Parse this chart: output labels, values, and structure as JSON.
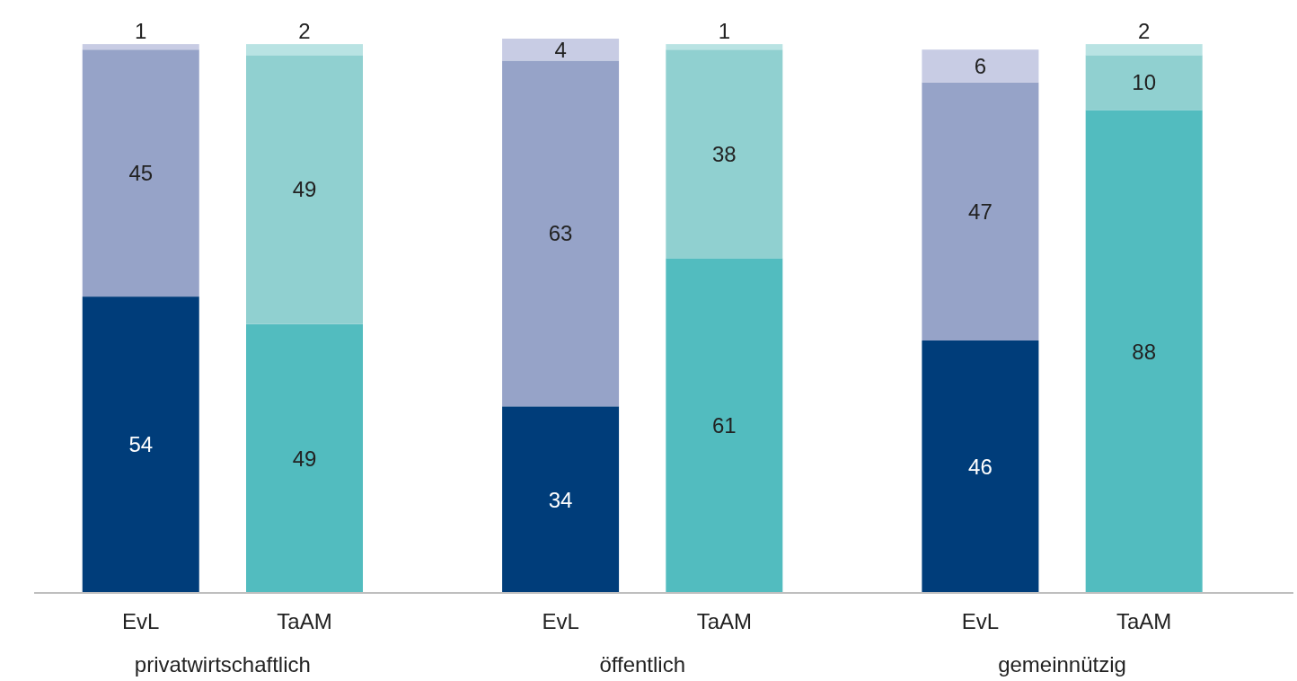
{
  "chart_data": {
    "type": "bar",
    "stacked": true,
    "data_labels": true,
    "categories": [
      "EvL",
      "TaAM",
      "EvL",
      "TaAM",
      "EvL",
      "TaAM"
    ],
    "series": [
      {
        "colors": [
          "#003d7a",
          "#52bcbf",
          "#003d7a",
          "#52bcbf",
          "#003d7a",
          "#52bcbf"
        ],
        "values": [
          54,
          49,
          34,
          61,
          46,
          88
        ]
      },
      {
        "colors": [
          "#96a3c8",
          "#90d0d0",
          "#96a3c8",
          "#90d0d0",
          "#96a3c8",
          "#90d0d0"
        ],
        "values": [
          45,
          49,
          63,
          38,
          47,
          10
        ]
      },
      {
        "colors": [
          "#c8cce4",
          "#b9e3e3",
          "#c8cce4",
          "#b9e3e3",
          "#c8cce4",
          "#b9e3e3"
        ],
        "values": [
          1,
          2,
          4,
          1,
          6,
          2
        ]
      }
    ],
    "annotations": [
      "privatwirtschaftlich",
      "öffentlich",
      "gemeinnützig"
    ]
  }
}
